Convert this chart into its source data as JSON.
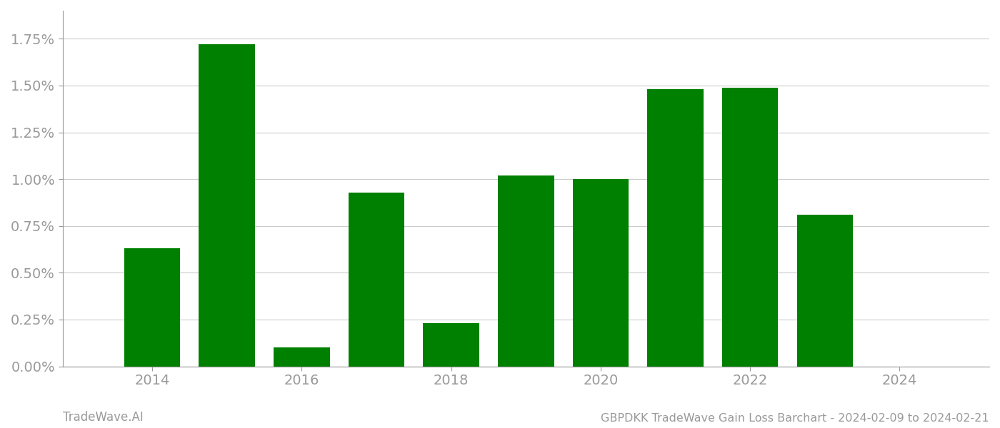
{
  "years": [
    2014,
    2015,
    2016,
    2017,
    2018,
    2019,
    2020,
    2021,
    2022,
    2023
  ],
  "values": [
    0.0063,
    0.0172,
    0.001,
    0.0093,
    0.0023,
    0.0102,
    0.01,
    0.0148,
    0.0149,
    0.0081
  ],
  "bar_color": "#008000",
  "background_color": "#ffffff",
  "grid_color": "#cccccc",
  "axis_label_color": "#999999",
  "title_text": "GBPDKK TradeWave Gain Loss Barchart - 2024-02-09 to 2024-02-21",
  "watermark_text": "TradeWave.AI",
  "ylim": [
    0,
    0.019
  ],
  "yticks": [
    0.0,
    0.0025,
    0.005,
    0.0075,
    0.01,
    0.0125,
    0.015,
    0.0175
  ],
  "xlim": [
    2012.8,
    2025.2
  ],
  "xticks": [
    2014,
    2016,
    2018,
    2020,
    2022,
    2024
  ],
  "title_fontsize": 11.5,
  "watermark_fontsize": 12,
  "tick_fontsize": 14
}
